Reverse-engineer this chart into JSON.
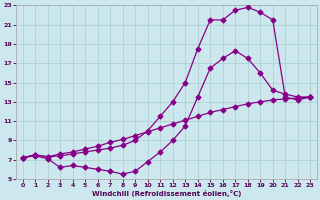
{
  "xlabel": "Windchill (Refroidissement éolien,°C)",
  "bg_color": "#cce8ee",
  "grid_color": "#aacccc",
  "line_color": "#880088",
  "line1_x": [
    0,
    1,
    2,
    3,
    4,
    5,
    6,
    7,
    8,
    9,
    10,
    11,
    12,
    13,
    14,
    15,
    16,
    17,
    18,
    19,
    20,
    21,
    22,
    23
  ],
  "line1_y": [
    7.2,
    7.5,
    7.3,
    7.6,
    7.8,
    8.1,
    8.4,
    8.8,
    9.1,
    9.5,
    9.9,
    10.3,
    10.7,
    11.1,
    11.5,
    11.9,
    12.2,
    12.5,
    12.8,
    13.0,
    13.2,
    13.3,
    13.4,
    13.5
  ],
  "line2_x": [
    0,
    1,
    2,
    3,
    4,
    5,
    6,
    7,
    8,
    9,
    10,
    11,
    12,
    13,
    14,
    15,
    16,
    17,
    18,
    19,
    20,
    21,
    22,
    23
  ],
  "line2_y": [
    7.2,
    7.5,
    7.3,
    7.4,
    7.6,
    7.8,
    8.0,
    8.2,
    8.5,
    9.0,
    10.0,
    11.5,
    13.0,
    15.0,
    18.5,
    21.5,
    21.5,
    22.5,
    22.8,
    22.3,
    21.5,
    13.5,
    13.2,
    13.5
  ],
  "line3_x": [
    0,
    1,
    2,
    3,
    4,
    5,
    6,
    7,
    8,
    9,
    10,
    11,
    12,
    13,
    14,
    15,
    16,
    17,
    18,
    19,
    20,
    21,
    22,
    23
  ],
  "line3_y": [
    7.2,
    7.4,
    7.1,
    6.2,
    6.4,
    6.2,
    6.0,
    5.8,
    5.5,
    5.8,
    6.8,
    7.8,
    9.0,
    10.5,
    13.5,
    16.5,
    17.5,
    18.3,
    17.5,
    16.0,
    14.2,
    13.8,
    13.5,
    13.5
  ],
  "xlim": [
    -0.5,
    23.5
  ],
  "ylim": [
    5,
    23
  ],
  "xticks": [
    0,
    1,
    2,
    3,
    4,
    5,
    6,
    7,
    8,
    9,
    10,
    11,
    12,
    13,
    14,
    15,
    16,
    17,
    18,
    19,
    20,
    21,
    22,
    23
  ],
  "yticks": [
    5,
    7,
    9,
    11,
    13,
    15,
    17,
    19,
    21,
    23
  ],
  "marker": "D",
  "markersize": 2.5,
  "linewidth": 0.9
}
